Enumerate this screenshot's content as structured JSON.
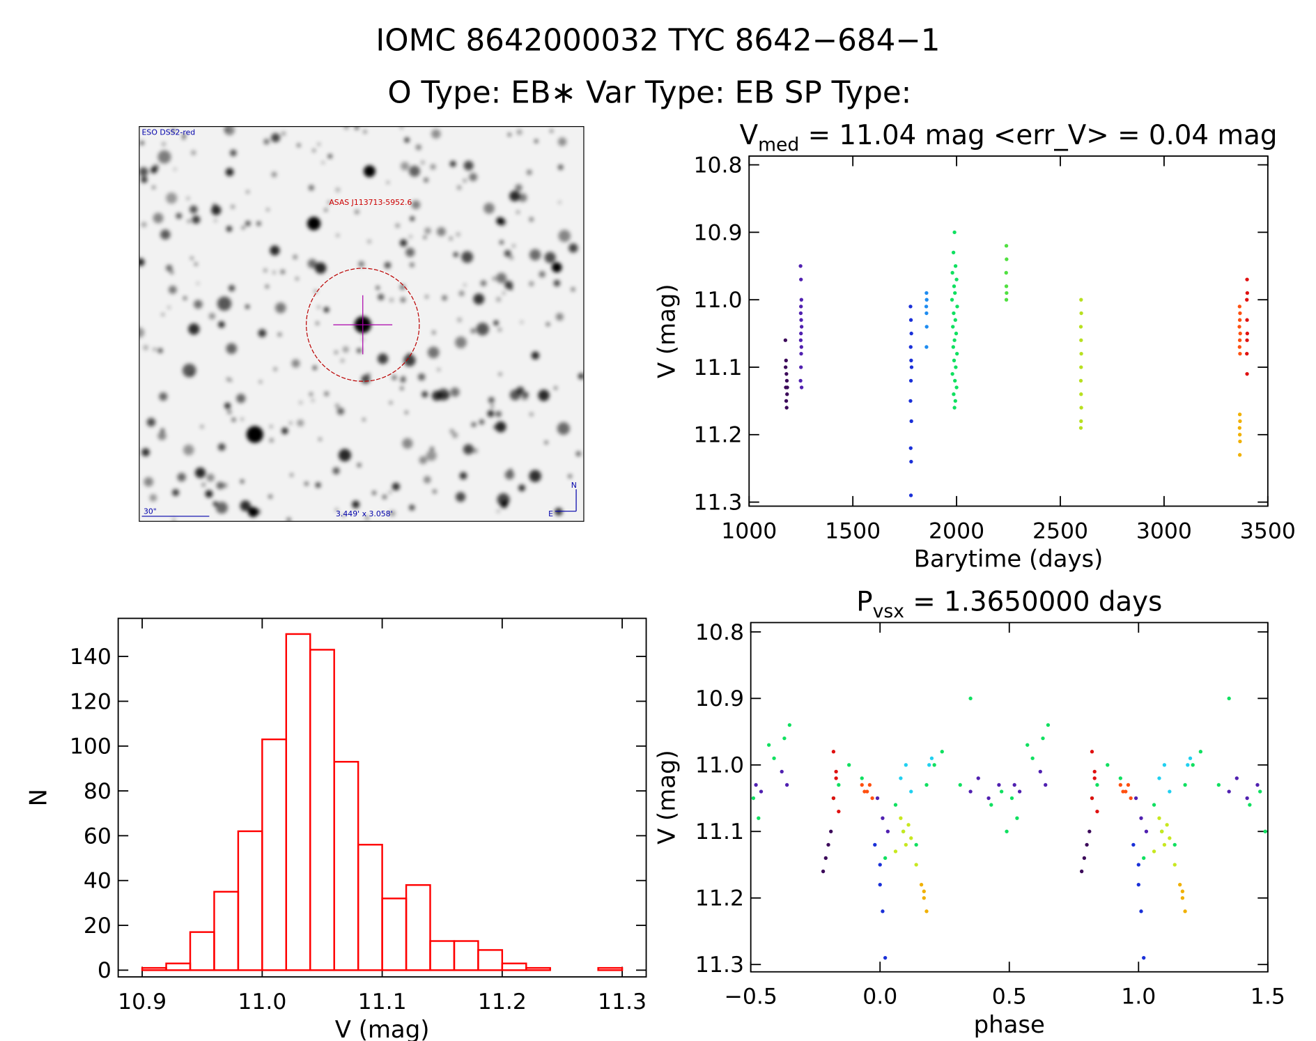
{
  "header": {
    "title": "IOMC 8642000032   TYC 8642−684−1",
    "subtitle": "O Type: EB∗  Var Type: EB  SP Type:"
  },
  "image": {
    "source": "ESO DSS2-red",
    "target": "ASAS J113713-5952.6",
    "scale": "30\"",
    "size": "3.449' x 3.058'",
    "north": "N",
    "east": "E"
  },
  "chart_data": [
    {
      "type": "scatter",
      "title": "V",
      "title_subscript": "med",
      "title_suffix": " = 11.04 mag <err_V> = 0.04 mag",
      "x_label": "Barytime (days)",
      "y_label": "V (mag)",
      "y_inverted": true,
      "xlim": [
        1000,
        3500
      ],
      "xticks": [
        1000,
        1500,
        2000,
        2500,
        3000,
        3500
      ],
      "ylim": [
        10.787,
        11.306
      ],
      "yticks": [
        10.8,
        10.9,
        {
          "value": 11,
          "label": "11.0"
        },
        11.1,
        11.2,
        11.3
      ],
      "series": [
        {
          "color": "#3c0a5a",
          "x": [
            1175,
            1178,
            1180,
            1182,
            1177,
            1183,
            1179,
            1181,
            1176,
            1184
          ],
          "values": [
            11.06,
            11.09,
            11.11,
            11.12,
            11.13,
            11.14,
            11.15,
            11.16,
            11.1,
            11.13
          ]
        },
        {
          "color": "#5020b0",
          "x": [
            1248,
            1250,
            1252,
            1249,
            1251,
            1253,
            1250,
            1249,
            1252,
            1251,
            1250,
            1248,
            1253,
            1250
          ],
          "values": [
            10.95,
            10.97,
            11.0,
            11.02,
            11.03,
            11.04,
            11.05,
            11.06,
            11.07,
            11.08,
            11.1,
            11.12,
            11.13,
            11.01
          ]
        },
        {
          "color": "#1a30d8",
          "x": [
            1778,
            1780,
            1782,
            1779,
            1781,
            1783,
            1780,
            1778,
            1782,
            1779,
            1781,
            1780
          ],
          "values": [
            11.01,
            11.03,
            11.05,
            11.07,
            11.09,
            11.1,
            11.12,
            11.15,
            11.18,
            11.22,
            11.24,
            11.29
          ]
        },
        {
          "color": "#1e8cf0",
          "x": [
            1855,
            1856,
            1854,
            1855,
            1856,
            1855
          ],
          "values": [
            10.99,
            11.0,
            11.01,
            11.02,
            11.04,
            11.07
          ]
        },
        {
          "color": "#10e060",
          "x": [
            1990,
            1985,
            1995,
            1980,
            2000,
            1988,
            1992,
            1978,
            2003,
            1986,
            1994,
            1982,
            1998,
            1990,
            1984,
            2002,
            1988,
            1996,
            1980,
            1992,
            2000,
            1986,
            1994,
            1990
          ],
          "values": [
            10.9,
            10.93,
            10.95,
            10.96,
            10.97,
            10.98,
            10.99,
            11.0,
            11.01,
            11.02,
            11.03,
            11.04,
            11.05,
            11.06,
            11.07,
            11.08,
            11.09,
            11.1,
            11.11,
            11.12,
            11.13,
            11.14,
            11.15,
            11.16
          ]
        },
        {
          "color": "#50e040",
          "x": [
            2240,
            2241,
            2239,
            2240,
            2241,
            2240
          ],
          "values": [
            10.92,
            10.94,
            10.96,
            10.98,
            10.99,
            11.0
          ]
        },
        {
          "color": "#b8e020",
          "x": [
            2600,
            2601,
            2599,
            2600,
            2601,
            2600,
            2599,
            2600,
            2601,
            2600,
            2599
          ],
          "values": [
            11.0,
            11.02,
            11.04,
            11.06,
            11.08,
            11.1,
            11.12,
            11.14,
            11.16,
            11.18,
            11.19
          ]
        },
        {
          "color": "#ff5010",
          "x": [
            3364,
            3366,
            3365,
            3363,
            3367,
            3365,
            3364,
            3366
          ],
          "values": [
            11.01,
            11.02,
            11.03,
            11.04,
            11.05,
            11.06,
            11.07,
            11.08
          ]
        },
        {
          "color": "#f0b000",
          "x": [
            3365,
            3366,
            3364,
            3365,
            3366,
            3365
          ],
          "values": [
            11.17,
            11.18,
            11.19,
            11.2,
            11.21,
            11.23
          ]
        },
        {
          "color": "#e01010",
          "x": [
            3400,
            3401,
            3399,
            3400,
            3401,
            3400,
            3399,
            3400
          ],
          "values": [
            10.97,
            10.99,
            11.0,
            11.03,
            11.05,
            11.06,
            11.08,
            11.11
          ]
        }
      ]
    },
    {
      "type": "histogram",
      "x_label": "V (mag)",
      "y_label": "N",
      "color": "#ff0000",
      "xlim": [
        10.88,
        11.32
      ],
      "xticks": [
        10.9,
        {
          "value": 11,
          "label": "11.0"
        },
        11.1,
        11.2,
        11.3
      ],
      "ylim": [
        -3,
        157
      ],
      "yticks": [
        0,
        20,
        40,
        60,
        80,
        100,
        120,
        140
      ],
      "bins": [
        10.9,
        10.92,
        10.94,
        10.96,
        10.98,
        11.0,
        11.02,
        11.04,
        11.06,
        11.08,
        11.1,
        11.12,
        11.14,
        11.16,
        11.18,
        11.2,
        11.22,
        11.24,
        11.26,
        11.28,
        11.3
      ],
      "values": [
        1,
        3,
        17,
        35,
        62,
        103,
        150,
        143,
        93,
        56,
        32,
        38,
        13,
        13,
        9,
        3,
        1,
        0,
        0,
        1
      ]
    },
    {
      "type": "scatter",
      "title": "P",
      "title_subscript": "vsx",
      "title_suffix": " = 1.3650000 days",
      "x_label": "phase",
      "y_label": "V (mag)",
      "y_inverted": true,
      "xlim": [
        -0.5,
        1.5
      ],
      "xticks": [
        {
          "value": -0.5,
          "label": "−0.5"
        },
        {
          "value": 0,
          "label": "0.0"
        },
        0.5,
        {
          "value": 1,
          "label": "1.0"
        },
        1.5
      ],
      "ylim": [
        10.786,
        11.311
      ],
      "yticks": [
        10.8,
        10.9,
        {
          "value": 11,
          "label": "11.0"
        },
        11.1,
        11.2,
        11.3
      ],
      "series": [
        {
          "color": "#3c0a5a",
          "x": [
            -0.22,
            -0.21,
            -0.2,
            -0.19,
            0.78,
            0.79,
            0.8,
            0.81
          ],
          "values": [
            11.16,
            11.14,
            11.12,
            11.1,
            11.16,
            11.14,
            11.12,
            11.1
          ]
        },
        {
          "color": "#5020b0",
          "x": [
            -0.48,
            -0.46,
            -0.38,
            -0.36,
            -0.01,
            0.01,
            0.03,
            0.35,
            0.38,
            0.42,
            0.46,
            0.52,
            0.54,
            0.62,
            0.64,
            0.99,
            1.01,
            1.03,
            1.35,
            1.38,
            1.42,
            1.46
          ],
          "values": [
            11.03,
            11.04,
            11.01,
            11.03,
            11.05,
            11.08,
            11.1,
            11.04,
            11.02,
            11.05,
            11.03,
            11.03,
            11.04,
            11.01,
            11.03,
            11.05,
            11.08,
            11.1,
            11.04,
            11.02,
            11.05,
            11.03
          ]
        },
        {
          "color": "#1a30d8",
          "x": [
            -0.02,
            0,
            0.01,
            0.02,
            0,
            0.98,
            1,
            1.01,
            1.02,
            1
          ],
          "values": [
            11.12,
            11.18,
            11.22,
            11.29,
            11.15,
            11.12,
            11.18,
            11.22,
            11.29,
            11.15
          ]
        },
        {
          "color": "#20d0f0",
          "x": [
            0.08,
            0.1,
            0.12,
            0.19,
            0.2,
            1.08,
            1.1,
            1.12,
            1.19,
            1.2
          ],
          "values": [
            11.02,
            11.0,
            11.04,
            11.0,
            10.99,
            11.02,
            11.0,
            11.04,
            11.0,
            10.99
          ]
        },
        {
          "color": "#10e060",
          "x": [
            -0.49,
            -0.47,
            -0.43,
            -0.41,
            -0.37,
            -0.35,
            -0.18,
            -0.16,
            -0.12,
            -0.07,
            0.02,
            0.06,
            0.09,
            0.14,
            0.18,
            0.21,
            0.24,
            0.31,
            0.35,
            0.43,
            0.47,
            0.49,
            0.51,
            0.53,
            0.57,
            0.59,
            0.63,
            0.65,
            0.82,
            0.84,
            0.88,
            0.93,
            1.02,
            1.06,
            1.09,
            1.14,
            1.18,
            1.21,
            1.24,
            1.31,
            1.35,
            1.43,
            1.47,
            1.49
          ],
          "values": [
            11.05,
            11.08,
            10.97,
            10.99,
            10.96,
            10.94,
            11.05,
            11.03,
            11.0,
            11.02,
            11.14,
            11.06,
            11.1,
            11.12,
            11.03,
            11.0,
            10.98,
            11.03,
            10.9,
            11.06,
            11.04,
            11.1,
            11.05,
            11.08,
            10.97,
            10.99,
            10.96,
            10.94,
            11.05,
            11.03,
            11.0,
            11.02,
            11.14,
            11.06,
            11.1,
            11.12,
            11.03,
            11.0,
            10.98,
            11.03,
            10.9,
            11.06,
            11.04,
            11.1
          ]
        },
        {
          "color": "#c8e820",
          "x": [
            0.06,
            0.08,
            0.09,
            0.1,
            0.11,
            0.12,
            0.14,
            1.06,
            1.08,
            1.09,
            1.1,
            1.11,
            1.12,
            1.14
          ],
          "values": [
            11.13,
            11.08,
            11.1,
            11.12,
            11.09,
            11.11,
            11.15,
            11.13,
            11.08,
            11.1,
            11.12,
            11.09,
            11.11,
            11.15
          ]
        },
        {
          "color": "#ff5010",
          "x": [
            -0.07,
            -0.06,
            -0.05,
            -0.04,
            -0.03,
            0.93,
            0.94,
            0.95,
            0.96,
            0.97
          ],
          "values": [
            11.03,
            11.04,
            11.04,
            11.03,
            11.05,
            11.03,
            11.04,
            11.04,
            11.03,
            11.05
          ]
        },
        {
          "color": "#f0b000",
          "x": [
            0.16,
            0.17,
            0.17,
            0.18,
            1.16,
            1.17,
            1.17,
            1.18
          ],
          "values": [
            11.18,
            11.2,
            11.19,
            11.22,
            11.18,
            11.2,
            11.19,
            11.22
          ]
        },
        {
          "color": "#e01010",
          "x": [
            -0.18,
            -0.17,
            -0.18,
            -0.16,
            -0.17,
            0.82,
            0.83,
            0.82,
            0.84,
            0.83
          ],
          "values": [
            10.98,
            11.01,
            11.05,
            11.07,
            11.02,
            10.98,
            11.01,
            11.05,
            11.07,
            11.02
          ]
        }
      ]
    }
  ]
}
